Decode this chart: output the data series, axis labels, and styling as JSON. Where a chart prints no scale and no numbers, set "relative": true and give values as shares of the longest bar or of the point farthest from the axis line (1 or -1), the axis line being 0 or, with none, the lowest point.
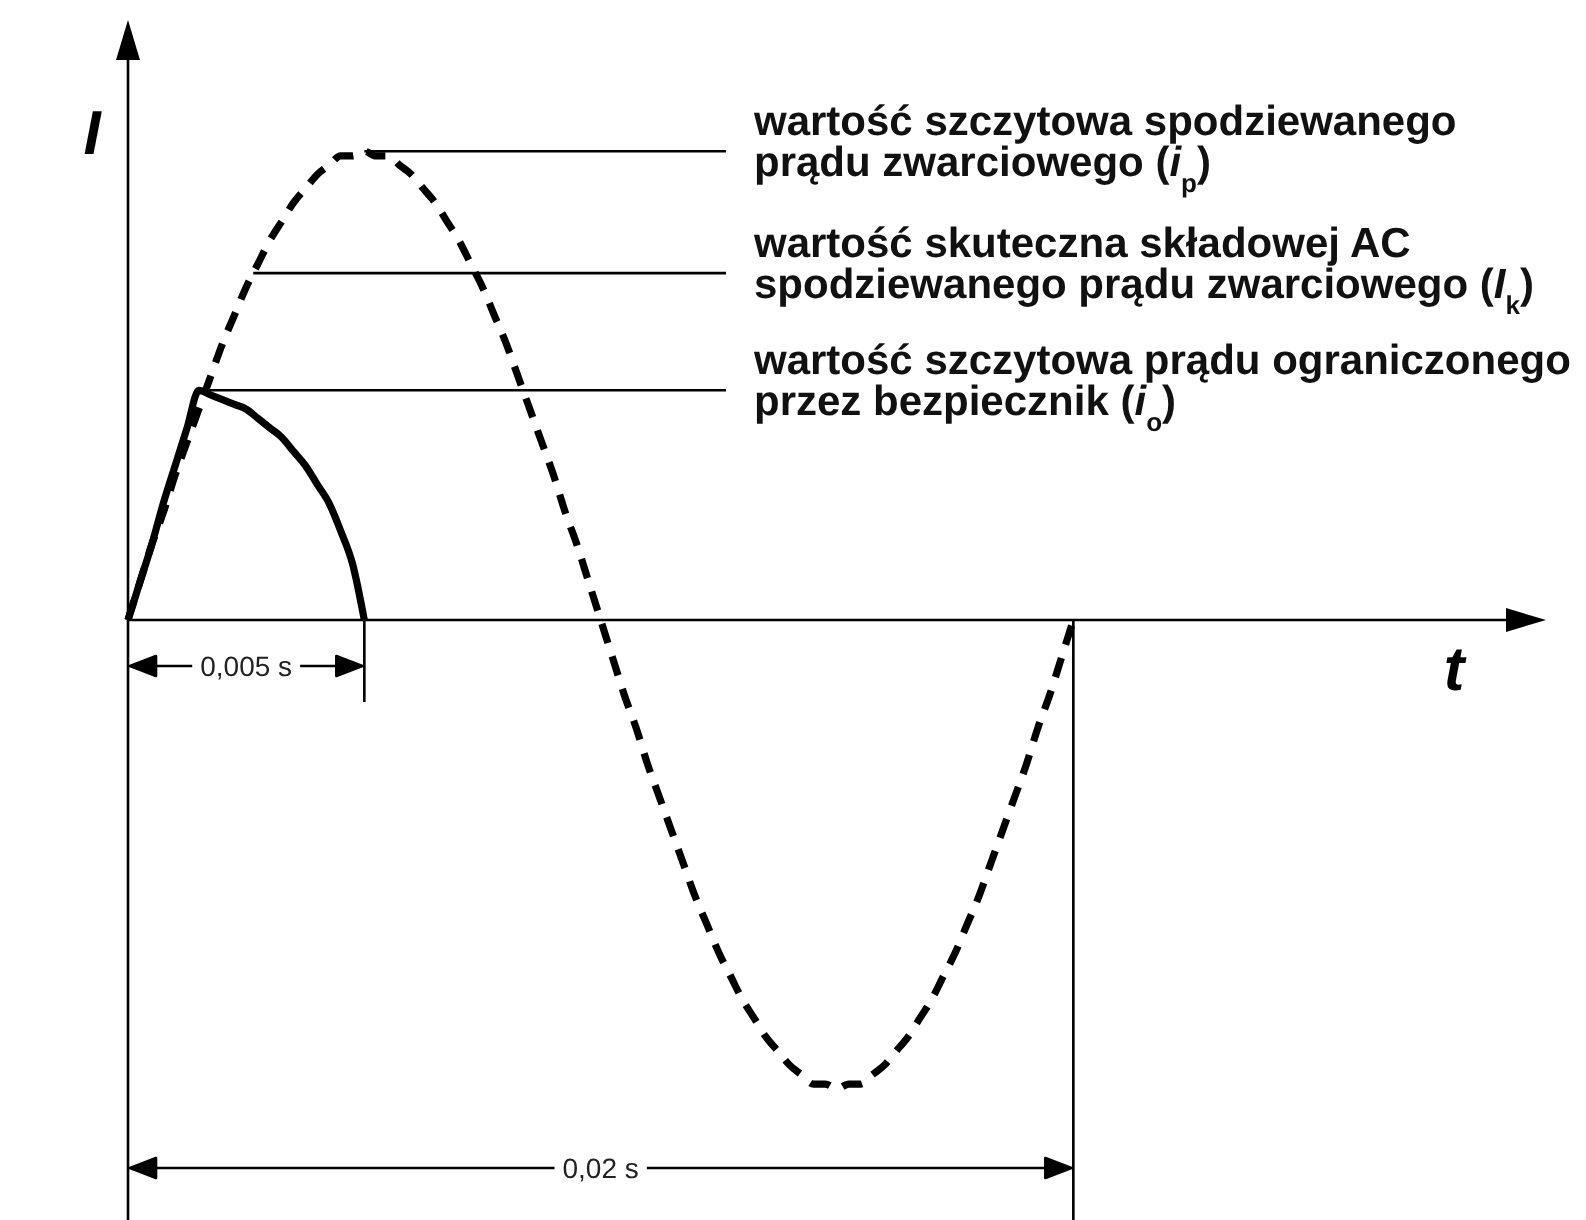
{
  "chart_data": {
    "type": "line",
    "relative": true,
    "xlabel": "t",
    "ylabel": "I",
    "categories": [
      null,
      null,
      null,
      null,
      null,
      null,
      null,
      null,
      null,
      null,
      null,
      null,
      null,
      null,
      null,
      null,
      null,
      null,
      null,
      null,
      null,
      null,
      null,
      null,
      null,
      null,
      null,
      null,
      null,
      null,
      null,
      null,
      null,
      null,
      null,
      null,
      null,
      null,
      null,
      null,
      null,
      null,
      null,
      null,
      null,
      null,
      null,
      null,
      null,
      null,
      null,
      null,
      null,
      null,
      null,
      null,
      null,
      null,
      null,
      null,
      null,
      null,
      null,
      null,
      null,
      null,
      null,
      null,
      null,
      null,
      null,
      null,
      null,
      null,
      null,
      null,
      null,
      null,
      null,
      null,
      null,
      null,
      null,
      null,
      null,
      null,
      null,
      null,
      null,
      null,
      null,
      null,
      null,
      null,
      null,
      null,
      null,
      null,
      null,
      null,
      null,
      null,
      null,
      null,
      null,
      null,
      null,
      null,
      null,
      null,
      null,
      null,
      null,
      null,
      null,
      null,
      null,
      null,
      null,
      null,
      null
    ],
    "series": [
      {
        "color": "#000000",
        "line_style": "solid",
        "values": [
          0,
          0.08,
          0.16,
          0.25,
          0.33,
          0.41,
          0.49,
          0.48,
          0.47,
          0.46,
          0.45,
          0.43,
          0.41,
          0.39,
          0.36,
          0.33,
          0.29,
          0.25,
          0.19,
          0.12,
          0,
          null,
          null,
          null,
          null,
          null,
          null,
          null,
          null,
          null,
          null,
          null,
          null,
          null,
          null,
          null,
          null,
          null,
          null,
          null,
          null,
          null,
          null,
          null,
          null,
          null,
          null,
          null,
          null,
          null,
          null,
          null,
          null,
          null,
          null,
          null,
          null,
          null,
          null,
          null,
          null,
          null,
          null,
          null,
          null,
          null,
          null,
          null,
          null,
          null,
          null,
          null,
          null,
          null,
          null,
          null,
          null,
          null,
          null,
          null,
          null,
          null,
          null,
          null,
          null,
          null,
          null,
          null,
          null,
          null,
          null,
          null,
          null,
          null,
          null,
          null,
          null,
          null,
          null,
          null,
          null,
          null,
          null,
          null,
          null,
          null,
          null,
          null,
          null,
          null,
          null,
          null,
          null,
          null,
          null,
          null,
          null,
          null,
          null,
          null,
          null
        ]
      },
      {
        "color": "#000000",
        "line_style": "dashed",
        "values": [
          0,
          0.08,
          0.16,
          0.23,
          0.31,
          0.38,
          0.45,
          0.52,
          0.59,
          0.65,
          0.71,
          0.76,
          0.81,
          0.85,
          0.89,
          0.92,
          0.95,
          0.97,
          0.99,
          0.99,
          1,
          0.99,
          0.99,
          0.97,
          0.95,
          0.92,
          0.89,
          0.85,
          0.81,
          0.76,
          0.71,
          0.65,
          0.59,
          0.52,
          0.45,
          0.38,
          0.31,
          0.23,
          0.16,
          0.08,
          0,
          -0.08,
          -0.16,
          -0.23,
          -0.31,
          -0.38,
          -0.45,
          -0.52,
          -0.59,
          -0.65,
          -0.71,
          -0.76,
          -0.81,
          -0.85,
          -0.89,
          -0.92,
          -0.95,
          -0.97,
          -0.99,
          -0.99,
          -1,
          -0.99,
          -0.99,
          -0.97,
          -0.95,
          -0.92,
          -0.89,
          -0.85,
          -0.81,
          -0.76,
          -0.71,
          -0.65,
          -0.59,
          -0.52,
          -0.45,
          -0.38,
          -0.31,
          -0.23,
          -0.16,
          -0.08,
          0,
          null,
          null,
          null,
          null,
          null,
          null,
          null,
          null,
          null,
          null,
          null,
          null,
          null,
          null,
          null,
          null,
          null,
          null,
          null,
          null,
          null,
          null,
          null,
          null,
          null,
          null,
          null,
          null,
          null,
          null,
          null,
          null,
          null,
          null,
          null,
          null,
          null,
          null,
          null,
          null
        ]
      }
    ],
    "ref_lines": [
      {
        "axis": "y",
        "value": 1,
        "label": "wartość szczytowa spodziewanego\nprądu zwarciowego (i$_{p}$)"
      },
      {
        "axis": "y",
        "value": 0.74,
        "label": "wartość skuteczna składowej AC\nspodziewanego prądu zwarciowego (I$_{k}$)"
      },
      {
        "axis": "y",
        "value": 0.49,
        "label": "wartość szczytowa prądu ograniczonego\nprzez bezpiecznik (i$_{o}$)"
      }
    ],
    "annotations": [
      "0,005 s",
      "0,02 s"
    ]
  }
}
